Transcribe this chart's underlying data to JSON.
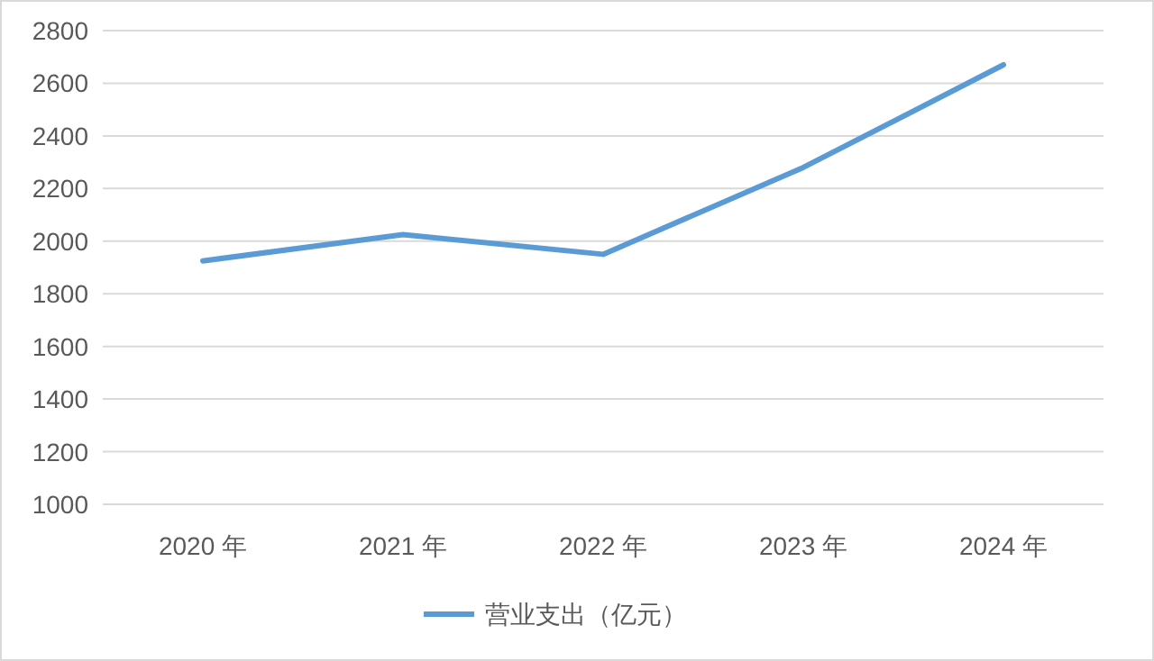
{
  "chart_data": {
    "type": "line",
    "categories": [
      "2020 年",
      "2021 年",
      "2022 年",
      "2023 年",
      "2024 年"
    ],
    "series": [
      {
        "name": "营业支出（亿元）",
        "color": "#5b9bd5",
        "values": [
          1925,
          2025,
          1950,
          2280,
          2670
        ]
      }
    ],
    "ylim": [
      1000,
      2800
    ],
    "yticks": [
      1000,
      1200,
      1400,
      1600,
      1800,
      2000,
      2200,
      2400,
      2600,
      2800
    ],
    "grid": "y",
    "legend": "bottom",
    "marker": "none",
    "line_style": "solid"
  }
}
